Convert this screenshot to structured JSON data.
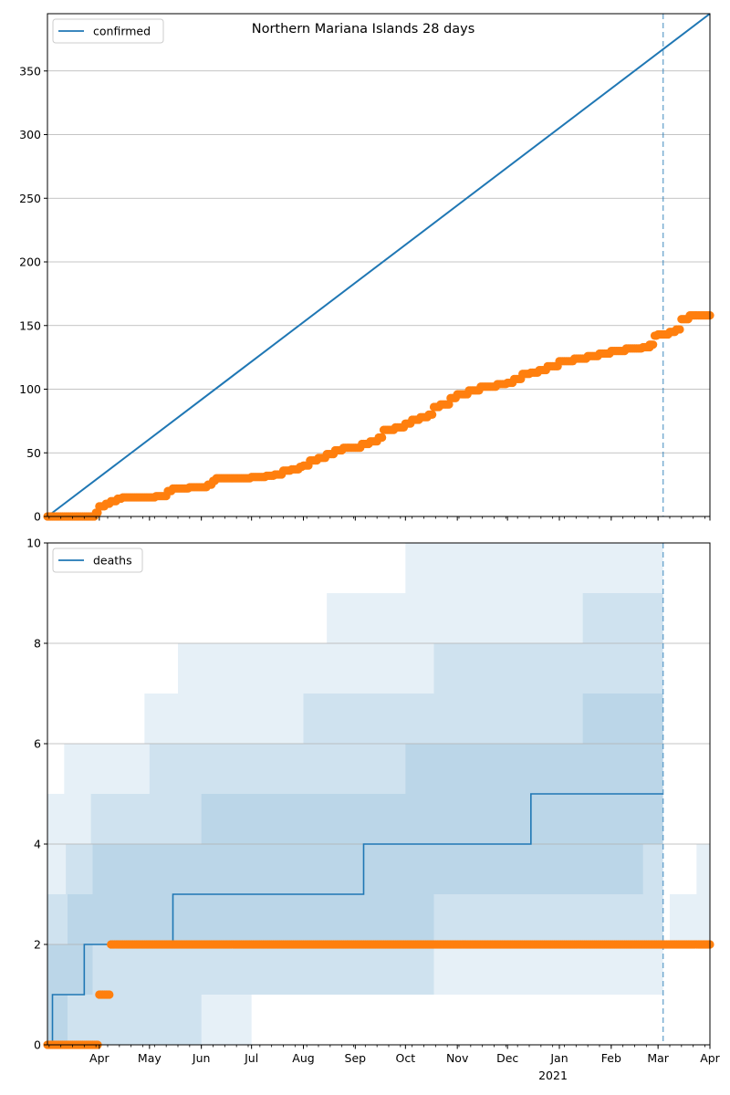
{
  "figure": {
    "title": "Northern Mariana Islands 28 days"
  },
  "colors": {
    "model_line": "#1f77b4",
    "observed": "#ff7f0e",
    "band": "#1f77b4",
    "grid": "#b0b0b0",
    "cutoff_line": "#1f77b4"
  },
  "chart_data": [
    {
      "type": "line",
      "name": "confirmed-panel",
      "legend": [
        "confirmed"
      ],
      "legend_position": "top-left",
      "grid": "horizontal",
      "xlim": [
        "2020-03-01",
        "2021-04-01"
      ],
      "ylim": [
        0,
        395
      ],
      "yticks": [
        0,
        50,
        100,
        150,
        200,
        250,
        300,
        350
      ],
      "cutoff_date": "2021-03-04",
      "model_series": {
        "x": [
          "2020-03-01",
          "2021-04-01"
        ],
        "y": [
          0,
          395
        ]
      },
      "observed": {
        "x": [
          "2020-03-01",
          "2020-03-27",
          "2020-03-30",
          "2020-04-01",
          "2020-04-05",
          "2020-04-08",
          "2020-04-12",
          "2020-04-15",
          "2020-04-20",
          "2020-04-25",
          "2020-05-05",
          "2020-05-12",
          "2020-05-15",
          "2020-05-20",
          "2020-05-25",
          "2020-06-01",
          "2020-06-05",
          "2020-06-08",
          "2020-06-10",
          "2020-06-20",
          "2020-07-01",
          "2020-07-10",
          "2020-07-15",
          "2020-07-20",
          "2020-07-25",
          "2020-07-30",
          "2020-08-01",
          "2020-08-05",
          "2020-08-10",
          "2020-08-15",
          "2020-08-20",
          "2020-08-25",
          "2020-09-01",
          "2020-09-05",
          "2020-09-10",
          "2020-09-15",
          "2020-09-18",
          "2020-09-25",
          "2020-10-01",
          "2020-10-05",
          "2020-10-10",
          "2020-10-15",
          "2020-10-18",
          "2020-10-22",
          "2020-10-28",
          "2020-11-01",
          "2020-11-08",
          "2020-11-15",
          "2020-11-25",
          "2020-12-01",
          "2020-12-05",
          "2020-12-10",
          "2020-12-15",
          "2020-12-20",
          "2020-12-25",
          "2021-01-01",
          "2021-01-10",
          "2021-01-18",
          "2021-01-25",
          "2021-02-01",
          "2021-02-10",
          "2021-02-20",
          "2021-02-25",
          "2021-02-27",
          "2021-03-01",
          "2021-03-08",
          "2021-03-12",
          "2021-03-15",
          "2021-03-20",
          "2021-04-01"
        ],
        "y": [
          0,
          0,
          3,
          8,
          10,
          12,
          14,
          15,
          15,
          15,
          16,
          20,
          22,
          22,
          23,
          23,
          25,
          28,
          30,
          30,
          31,
          32,
          33,
          36,
          37,
          39,
          40,
          44,
          46,
          49,
          52,
          54,
          54,
          57,
          59,
          62,
          68,
          70,
          73,
          76,
          78,
          80,
          86,
          88,
          93,
          96,
          99,
          102,
          104,
          105,
          108,
          112,
          113,
          115,
          118,
          122,
          124,
          126,
          128,
          130,
          132,
          133,
          135,
          142,
          143,
          145,
          147,
          155,
          158,
          158
        ]
      },
      "outlier": {
        "x": "2021-02-24",
        "y": 135
      }
    },
    {
      "type": "area",
      "name": "deaths-panel",
      "legend": [
        "deaths"
      ],
      "legend_position": "top-left",
      "grid": "horizontal",
      "xlim": [
        "2020-03-01",
        "2021-04-01"
      ],
      "ylim": [
        0,
        10
      ],
      "yticks": [
        0,
        2,
        4,
        6,
        8,
        10
      ],
      "cutoff_date": "2021-03-04",
      "xtick_labels": [
        "Apr",
        "May",
        "Jun",
        "Jul",
        "Aug",
        "Sep",
        "Oct",
        "Nov",
        "Dec",
        "Jan",
        "Feb",
        "Mar",
        "Apr"
      ],
      "xtick_dates": [
        "2020-04-01",
        "2020-05-01",
        "2020-06-01",
        "2020-07-01",
        "2020-08-01",
        "2020-09-01",
        "2020-10-01",
        "2020-11-01",
        "2020-12-01",
        "2021-01-01",
        "2021-02-01",
        "2021-03-01",
        "2021-04-01"
      ],
      "year_label": "2021",
      "model_series": {
        "x": [
          "2020-03-01",
          "2020-03-04",
          "2020-03-04",
          "2020-03-23",
          "2020-03-23",
          "2020-05-15",
          "2020-05-15",
          "2020-09-06",
          "2020-09-06",
          "2020-12-15",
          "2020-12-15",
          "2021-03-04"
        ],
        "y": [
          0,
          0,
          1,
          1,
          2,
          2,
          3,
          3,
          4,
          4,
          5,
          5
        ]
      },
      "bands": [
        {
          "x": [
            "2020-03-01",
            "2020-03-04",
            "2020-03-11",
            "2020-03-26",
            "2020-04-28",
            "2020-05-18",
            "2020-07-01",
            "2020-08-15",
            "2020-09-14",
            "2020-10-01",
            "2020-11-01",
            "2020-11-12",
            "2020-12-01",
            "2021-01-01",
            "2021-02-01",
            "2021-03-04"
          ],
          "lower": [
            0,
            0,
            0,
            0,
            0,
            0,
            1,
            1,
            1,
            1,
            1,
            1,
            1,
            1,
            1,
            1
          ],
          "upper": [
            5,
            5,
            6,
            6,
            7,
            8,
            8,
            9,
            9,
            10,
            10,
            10,
            10,
            10,
            10,
            10
          ]
        },
        {
          "x": [
            "2020-03-01",
            "2020-03-04",
            "2020-03-12",
            "2020-03-27",
            "2020-05-01",
            "2020-06-01",
            "2020-08-01",
            "2020-09-01",
            "2020-10-01",
            "2020-10-18",
            "2020-11-01",
            "2020-12-01",
            "2021-01-01",
            "2021-01-15",
            "2021-02-01",
            "2021-03-04"
          ],
          "lower": [
            0,
            0,
            0,
            0,
            0,
            1,
            1,
            1,
            1,
            2,
            2,
            2,
            2,
            2,
            2,
            2
          ],
          "upper": [
            3,
            3,
            4,
            5,
            6,
            6,
            7,
            7,
            7,
            8,
            8,
            8,
            8,
            9,
            9,
            9
          ]
        },
        {
          "x": [
            "2020-03-01",
            "2020-03-05",
            "2020-03-13",
            "2020-03-28",
            "2020-05-01",
            "2020-06-01",
            "2020-08-01",
            "2020-09-01",
            "2020-10-01",
            "2020-10-18",
            "2020-11-01",
            "2020-12-01",
            "2021-01-01",
            "2021-01-15",
            "2021-02-20",
            "2021-03-04"
          ],
          "lower": [
            0,
            0,
            1,
            2,
            2,
            2,
            2,
            2,
            2,
            3,
            3,
            3,
            3,
            3,
            4,
            4
          ],
          "upper": [
            2,
            2,
            3,
            4,
            4,
            5,
            5,
            5,
            6,
            6,
            6,
            6,
            6,
            7,
            7,
            7
          ]
        }
      ],
      "post_bands": {
        "x": [
          "2021-03-04",
          "2021-03-08",
          "2021-03-14",
          "2021-03-24",
          "2021-04-01"
        ],
        "lower": [
          2,
          2,
          2,
          2,
          2
        ],
        "upper": [
          2,
          3,
          3,
          4,
          4
        ]
      },
      "observed": {
        "x": [
          "2020-03-01",
          "2020-03-29",
          "2020-04-01",
          "2020-04-07",
          "2020-04-08",
          "2021-04-01"
        ],
        "y": [
          0,
          0,
          1,
          1,
          2,
          2
        ]
      }
    }
  ]
}
